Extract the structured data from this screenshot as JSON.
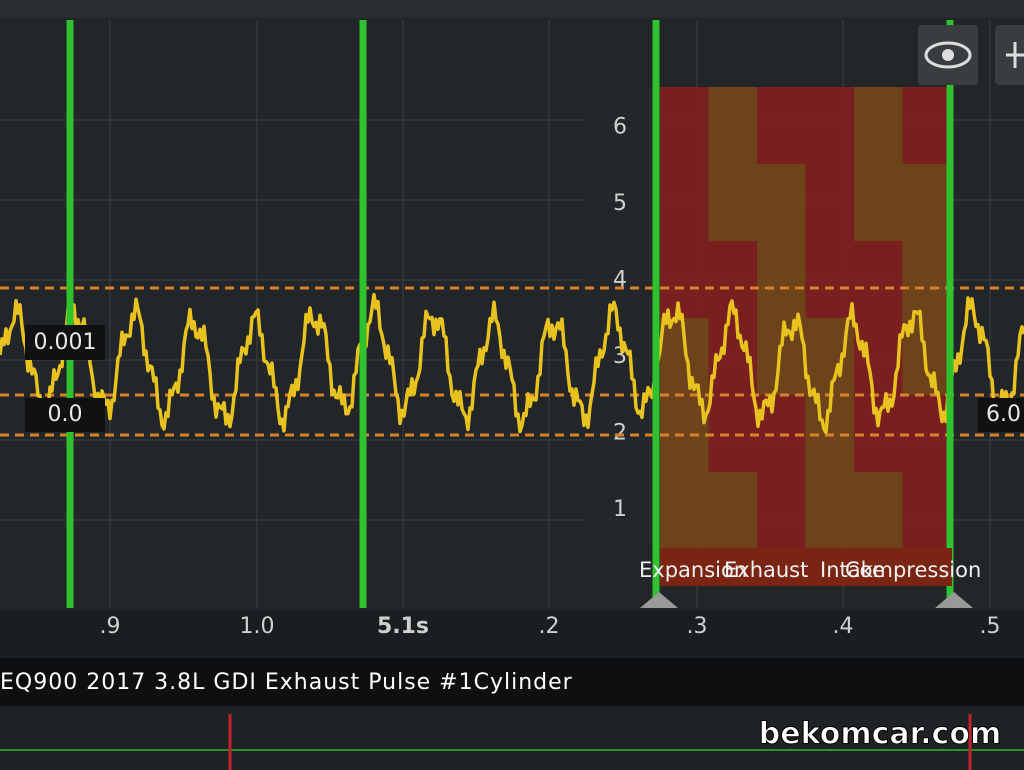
{
  "markers": {
    "upper": "0.001",
    "lower": "0.0",
    "right": "6.0"
  },
  "cylinder_axis": [
    "1",
    "2",
    "3",
    "4",
    "5",
    "6"
  ],
  "phases": [
    "Expansion",
    "Exhaust",
    "Intake",
    "Compression"
  ],
  "time_axis": [
    ".9",
    "1.0",
    "5.1s",
    ".2",
    ".3",
    ".4",
    ".5"
  ],
  "title": "EQ900 2017 3.8L GDI Exhaust Pulse #1Cylinder",
  "watermark": "bekomcar.com"
}
